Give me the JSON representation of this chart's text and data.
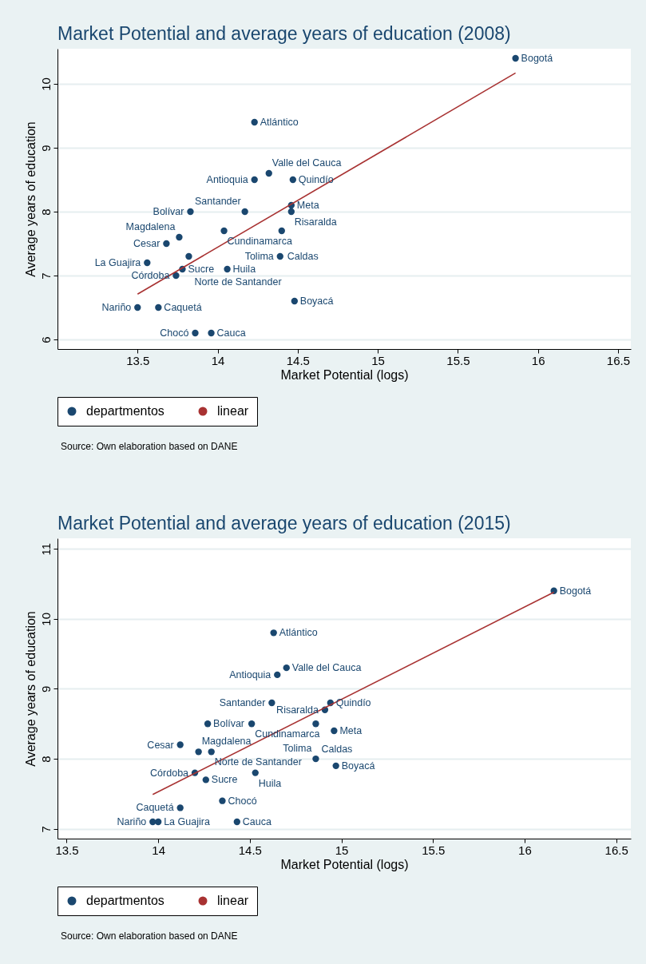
{
  "chart_data": [
    {
      "type": "scatter",
      "title": "Market Potential and average years of education (2008)",
      "xlabel": "Market Potential (logs)",
      "ylabel": "Average years of education",
      "xlim": [
        13,
        16.58
      ],
      "xticks": [
        13.5,
        14,
        14.5,
        15,
        15.5,
        16,
        16.5
      ],
      "ylim": [
        5.85,
        10.55
      ],
      "yticks": [
        6,
        7,
        8,
        9,
        10
      ],
      "grid": "y",
      "legend": "bottom",
      "series": [
        {
          "name": "departmentos",
          "color": "#1a476f",
          "x": [
            15.86,
            14.23,
            14.32,
            14.23,
            14.47,
            14.46,
            14.46,
            14.17,
            13.83,
            14.04,
            14.4,
            13.76,
            13.68,
            13.82,
            14.39,
            13.56,
            13.78,
            14.06,
            13.74,
            14.48,
            13.5,
            13.63,
            13.86,
            13.96
          ],
          "values": [
            10.4,
            9.4,
            8.6,
            8.5,
            8.5,
            8.1,
            8.0,
            8.0,
            8.0,
            7.7,
            7.7,
            7.6,
            7.5,
            7.3,
            7.3,
            7.2,
            7.1,
            7.1,
            7.0,
            6.6,
            6.5,
            6.5,
            6.1,
            6.1
          ]
        },
        {
          "name": "linear",
          "type": "line",
          "color": "#a83232",
          "x": [
            13.5,
            15.86
          ],
          "values": [
            6.71,
            10.17
          ]
        }
      ],
      "annotations": [
        {
          "text": "Bogotá",
          "x": 15.86,
          "y": 10.4
        },
        {
          "text": "Atlántico",
          "x": 14.23,
          "y": 9.4
        },
        {
          "text": "Valle del Cauca",
          "x": 14.32,
          "y": 8.6
        },
        {
          "text": "Antioquia",
          "x": 14.23,
          "y": 8.5
        },
        {
          "text": "Quindío",
          "x": 14.47,
          "y": 8.5
        },
        {
          "text": "Meta",
          "x": 14.46,
          "y": 8.1
        },
        {
          "text": "Risaralda",
          "x": 14.46,
          "y": 8.0
        },
        {
          "text": "Santander",
          "x": 14.17,
          "y": 8.0
        },
        {
          "text": "Bolívar",
          "x": 13.83,
          "y": 8.0
        },
        {
          "text": "Cundinamarca",
          "x": 14.04,
          "y": 7.7
        },
        {
          "text": "Caldas",
          "x": 14.4,
          "y": 7.7
        },
        {
          "text": "Magdalena",
          "x": 13.76,
          "y": 7.6
        },
        {
          "text": "Cesar",
          "x": 13.68,
          "y": 7.5
        },
        {
          "text": "Norte de Santander",
          "x": 13.82,
          "y": 7.3
        },
        {
          "text": "Tolima",
          "x": 14.39,
          "y": 7.3
        },
        {
          "text": "La Guajira",
          "x": 13.56,
          "y": 7.2
        },
        {
          "text": "Sucre",
          "x": 13.78,
          "y": 7.1
        },
        {
          "text": "Huila",
          "x": 14.06,
          "y": 7.1
        },
        {
          "text": "Córdoba",
          "x": 13.74,
          "y": 7.0
        },
        {
          "text": "Boyacá",
          "x": 14.48,
          "y": 6.6
        },
        {
          "text": "Nariño",
          "x": 13.5,
          "y": 6.5
        },
        {
          "text": "Caquetá",
          "x": 13.63,
          "y": 6.5
        },
        {
          "text": "Chocó",
          "x": 13.86,
          "y": 6.1
        },
        {
          "text": "Cauca",
          "x": 13.96,
          "y": 6.1
        },
        "Source: Own elaboration based on DANE"
      ]
    },
    {
      "type": "scatter",
      "title": "Market Potential and average years of education (2015)",
      "xlabel": "Market Potential (logs)",
      "ylabel": "Average years of education",
      "xlim": [
        13.45,
        16.58
      ],
      "xticks": [
        13.5,
        14,
        14.5,
        15,
        15.5,
        16,
        16.5
      ],
      "ylim": [
        6.86,
        11.15
      ],
      "yticks": [
        7,
        8,
        9,
        10,
        11
      ],
      "grid": "y",
      "legend": "bottom",
      "series": [
        {
          "name": "departmentos",
          "color": "#1a476f",
          "x": [
            16.16,
            14.63,
            14.7,
            14.65,
            14.62,
            14.94,
            14.91,
            14.27,
            14.51,
            14.86,
            14.96,
            14.12,
            14.22,
            14.29,
            14.86,
            14.97,
            14.2,
            14.53,
            14.26,
            14.35,
            14.12,
            13.97,
            14.0,
            14.43
          ],
          "values": [
            10.4,
            9.8,
            9.3,
            9.2,
            8.8,
            8.8,
            8.7,
            8.5,
            8.5,
            8.5,
            8.4,
            8.2,
            8.1,
            8.1,
            8.0,
            7.9,
            7.8,
            7.8,
            7.7,
            7.4,
            7.3,
            7.1,
            7.1,
            7.1
          ]
        },
        {
          "name": "linear",
          "type": "line",
          "color": "#a83232",
          "x": [
            13.97,
            16.16
          ],
          "values": [
            7.49,
            10.38
          ]
        }
      ],
      "annotations": [
        {
          "text": "Bogotá",
          "x": 16.16,
          "y": 10.4
        },
        {
          "text": "Atlántico",
          "x": 14.63,
          "y": 9.8
        },
        {
          "text": "Valle del Cauca",
          "x": 14.7,
          "y": 9.3
        },
        {
          "text": "Antioquia",
          "x": 14.65,
          "y": 9.2
        },
        {
          "text": "Santander",
          "x": 14.62,
          "y": 8.8
        },
        {
          "text": "Quindío",
          "x": 14.94,
          "y": 8.8
        },
        {
          "text": "Risaralda",
          "x": 14.91,
          "y": 8.7
        },
        {
          "text": "Bolívar",
          "x": 14.27,
          "y": 8.5
        },
        {
          "text": "Cundinamarca",
          "x": 14.51,
          "y": 8.5
        },
        {
          "text": "Caldas",
          "x": 14.86,
          "y": 8.5
        },
        {
          "text": "Meta",
          "x": 14.96,
          "y": 8.4
        },
        {
          "text": "Cesar",
          "x": 14.12,
          "y": 8.2
        },
        {
          "text": "Magdalena",
          "x": 14.22,
          "y": 8.1
        },
        {
          "text": "Norte de Santander",
          "x": 14.29,
          "y": 8.1
        },
        {
          "text": "Tolima",
          "x": 14.86,
          "y": 8.0
        },
        {
          "text": "Boyacá",
          "x": 14.97,
          "y": 7.9
        },
        {
          "text": "Córdoba",
          "x": 14.2,
          "y": 7.8
        },
        {
          "text": "Huila",
          "x": 14.53,
          "y": 7.8
        },
        {
          "text": "Sucre",
          "x": 14.26,
          "y": 7.7
        },
        {
          "text": "Chocó",
          "x": 14.35,
          "y": 7.4
        },
        {
          "text": "Caquetá",
          "x": 14.12,
          "y": 7.3
        },
        {
          "text": "Nariño",
          "x": 13.97,
          "y": 7.1
        },
        {
          "text": "La Guajira",
          "x": 14.0,
          "y": 7.1
        },
        {
          "text": "Cauca",
          "x": 14.43,
          "y": 7.1
        },
        "Source: Own elaboration based on DANE"
      ]
    }
  ]
}
